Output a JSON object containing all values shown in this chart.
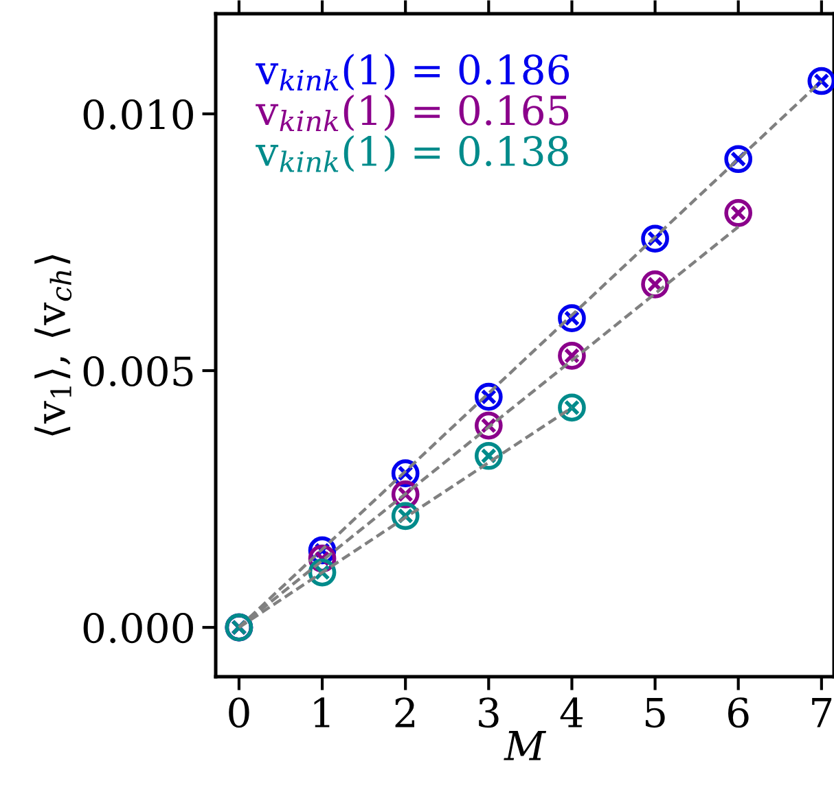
{
  "chart_data": {
    "type": "scatter",
    "xlabel": "M",
    "ylabel": "⟨v$_{1}$⟩, ⟨v$_{ch}$⟩",
    "xlim": [
      -0.28,
      7.15
    ],
    "ylim": [
      -0.00096,
      0.01195
    ],
    "xticks": [
      0,
      1,
      2,
      3,
      4,
      5,
      6,
      7
    ],
    "yticks": [
      {
        "value": 0,
        "label": "0.000"
      },
      {
        "value": 0.005,
        "label": "0.005"
      },
      {
        "value": 0.01,
        "label": "0.010"
      }
    ],
    "grid": false,
    "legend": "top left",
    "marker": "cross",
    "series": [
      {
        "name": "v$_{kink}$(1) = 0.186",
        "color": "#0000ee",
        "x": [
          0,
          1,
          2,
          3,
          4,
          5,
          6,
          7
        ],
        "values": [
          0,
          0.0015,
          0.003,
          0.00449,
          0.00602,
          0.00757,
          0.00912,
          0.01064
        ]
      },
      {
        "name": "v$_{kink}$(1) = 0.165",
        "color": "#8b008b",
        "x": [
          0,
          1,
          2,
          3,
          4,
          5,
          6
        ],
        "values": [
          0,
          0.00134,
          0.00259,
          0.00393,
          0.00529,
          0.00668,
          0.00807
        ]
      },
      {
        "name": "v$_{kink}$(1) = 0.138",
        "color": "#008b8b",
        "x": [
          0,
          1,
          2,
          3,
          4
        ],
        "values": [
          0,
          0.00107,
          0.00217,
          0.00334,
          0.00428
        ]
      },
      {
        "type": "line",
        "marker": "none",
        "line_style": "dashed",
        "color": "#808080",
        "x": [
          0,
          7
        ],
        "values": [
          0,
          0.01064
        ]
      },
      {
        "type": "line",
        "marker": "none",
        "line_style": "dashed",
        "color": "#808080",
        "x": [
          0,
          6
        ],
        "values": [
          0,
          0.0078
        ]
      },
      {
        "type": "line",
        "marker": "none",
        "line_style": "dashed",
        "color": "#808080",
        "x": [
          0,
          4
        ],
        "values": [
          0,
          0.00428
        ]
      }
    ]
  }
}
